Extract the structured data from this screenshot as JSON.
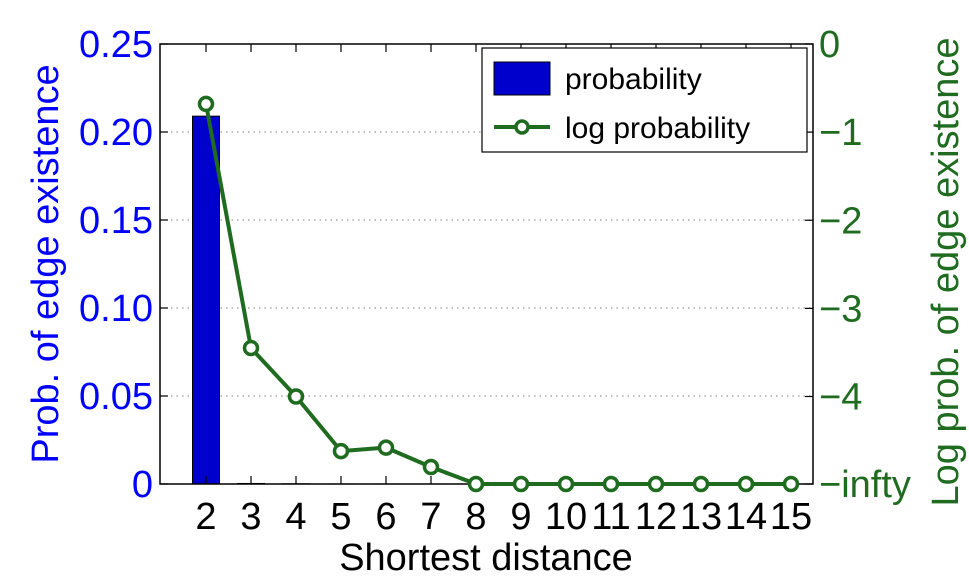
{
  "chart_data": {
    "type": "bar",
    "xlabel": "Shortest distance",
    "categories": [
      "2",
      "3",
      "4",
      "5",
      "6",
      "7",
      "8",
      "9",
      "10",
      "11",
      "12",
      "13",
      "14",
      "15"
    ],
    "series": [
      {
        "name": "probability",
        "type": "bar",
        "axis": "left",
        "color": "#0000cc",
        "values": [
          0.209,
          0.0003,
          0.0001,
          2e-05,
          2e-05,
          1e-05,
          0,
          0,
          0,
          0,
          0,
          0,
          0,
          0
        ]
      },
      {
        "name": "log probability",
        "type": "line",
        "axis": "right",
        "color": "#1f6b1f",
        "marker": "circle-open",
        "values": [
          -0.68,
          -3.45,
          -4.0,
          -4.62,
          -4.58,
          -4.8,
          "-infty",
          "-infty",
          "-infty",
          "-infty",
          "-infty",
          "-infty",
          "-infty",
          "-infty"
        ]
      }
    ],
    "left_axis": {
      "label": "Prob. of edge existence",
      "color": "#0000ff",
      "ylim": [
        0,
        0.25
      ],
      "ticks": [
        0,
        0.05,
        0.1,
        0.15,
        0.2,
        0.25
      ],
      "tick_labels": [
        "0",
        "0.05",
        "0.10",
        "0.15",
        "0.20",
        "0.25"
      ]
    },
    "right_axis": {
      "label": "Log prob. of edge existence",
      "color": "#1f6b1f",
      "ylim": [
        "-infty",
        0
      ],
      "ticks": [
        "-infty",
        -4,
        -3,
        -2,
        -1,
        0
      ],
      "tick_labels": [
        "−infty",
        "−4",
        "−3",
        "−2",
        "−1",
        "0"
      ]
    },
    "grid": "horizontal dotted",
    "legend": {
      "placement": "top-right",
      "entries": [
        "probability",
        "log probability"
      ]
    }
  }
}
